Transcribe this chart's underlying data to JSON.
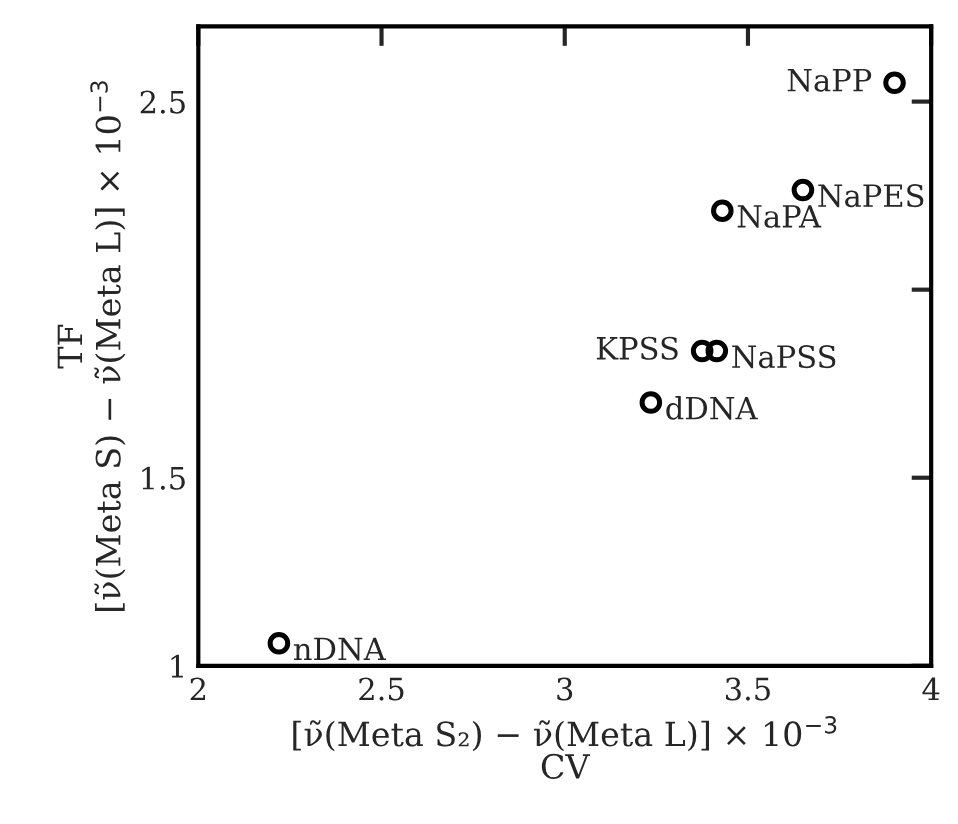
{
  "chart_data": {
    "type": "scatter",
    "xlabel": "[ν̃(Meta S₂) − ν̃(Meta L)] × 10$^{−3}$\nCV",
    "ylabel": "TF\n[ν̃(Meta S) − ν̃(Meta L)] × 10$^{−3}$",
    "x": [
      3.9,
      3.65,
      3.43,
      3.375,
      3.415,
      3.235,
      2.22
    ],
    "series": [
      {
        "color": "#000000",
        "values": [
          2.55,
          2.265,
          2.21,
          1.837,
          1.837,
          1.7,
          1.06
        ]
      }
    ],
    "annotations": [
      {
        "text": "NaPP",
        "x": 3.9,
        "y": 2.55
      },
      {
        "text": "NaPES",
        "x": 3.65,
        "y": 2.265
      },
      {
        "text": "NaPA",
        "x": 3.43,
        "y": 2.21
      },
      {
        "text": "KPSS",
        "x": 3.375,
        "y": 1.837
      },
      {
        "text": "NaPSS",
        "x": 3.415,
        "y": 1.837
      },
      {
        "text": "dDNA",
        "x": 3.235,
        "y": 1.7
      },
      {
        "text": "nDNA",
        "x": 2.22,
        "y": 1.06
      }
    ],
    "xlim": [
      2,
      4
    ],
    "ylim": [
      1,
      2.7
    ],
    "xticks": [
      2,
      2.5,
      3,
      3.5,
      4
    ],
    "yticks": [
      1,
      1.5,
      {
        "value": 2,
        "label": null
      },
      2.5
    ],
    "marker": "circle",
    "grid": false,
    "legend": false
  }
}
